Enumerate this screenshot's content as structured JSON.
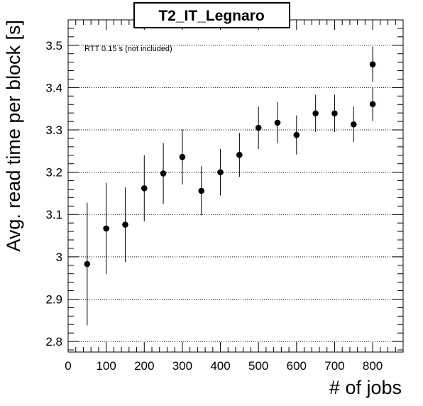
{
  "chart_data": {
    "type": "scatter",
    "title": "T2_IT_Legnaro",
    "xlabel": "# of jobs",
    "ylabel": "Avg. read time per block [s]",
    "annotation": "RTT 0.15 s (not included)",
    "xlim": [
      0,
      880
    ],
    "ylim": [
      2.775,
      3.56
    ],
    "x_ticks": [
      0,
      100,
      200,
      300,
      400,
      500,
      600,
      700,
      800
    ],
    "x_tick_labels": [
      "0",
      "100",
      "200",
      "300",
      "400",
      "500",
      "600",
      "700",
      "800"
    ],
    "y_ticks": [
      2.8,
      2.9,
      3.0,
      3.1,
      3.2,
      3.3,
      3.4,
      3.5
    ],
    "y_tick_labels": [
      "2.8",
      "2.9",
      "3",
      "3.1",
      "3.2",
      "3.3",
      "3.4",
      "3.5"
    ],
    "grid": "horizontal dotted",
    "series": [
      {
        "marker": "filled circle",
        "color": "#000000",
        "points": [
          {
            "x": 50,
            "y": 2.983,
            "err": 0.145
          },
          {
            "x": 100,
            "y": 3.067,
            "err": 0.108
          },
          {
            "x": 150,
            "y": 3.076,
            "err": 0.088
          },
          {
            "x": 200,
            "y": 3.162,
            "err": 0.078
          },
          {
            "x": 250,
            "y": 3.197,
            "err": 0.072
          },
          {
            "x": 300,
            "y": 3.236,
            "err": 0.065
          },
          {
            "x": 350,
            "y": 3.156,
            "err": 0.058
          },
          {
            "x": 400,
            "y": 3.2,
            "err": 0.055
          },
          {
            "x": 450,
            "y": 3.241,
            "err": 0.052
          },
          {
            "x": 500,
            "y": 3.305,
            "err": 0.05
          },
          {
            "x": 550,
            "y": 3.317,
            "err": 0.048
          },
          {
            "x": 600,
            "y": 3.288,
            "err": 0.046
          },
          {
            "x": 650,
            "y": 3.339,
            "err": 0.044
          },
          {
            "x": 700,
            "y": 3.339,
            "err": 0.044
          },
          {
            "x": 750,
            "y": 3.313,
            "err": 0.042
          },
          {
            "x": 800,
            "y": 3.361,
            "err": 0.04
          },
          {
            "x": 800,
            "y": 3.455,
            "err": 0.042
          }
        ]
      }
    ]
  }
}
